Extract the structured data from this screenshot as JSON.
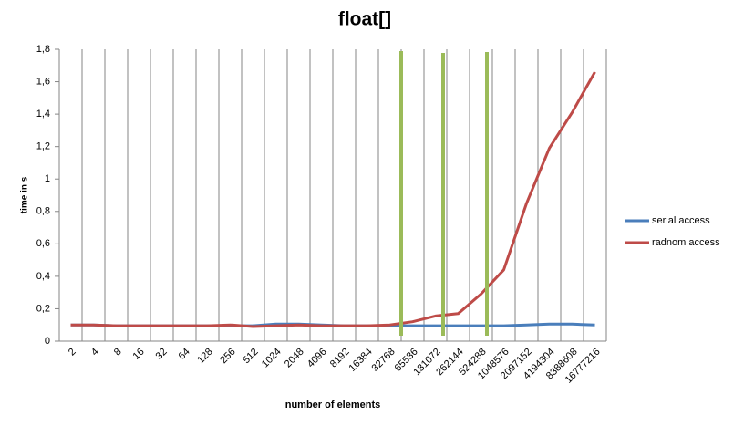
{
  "chart_data": {
    "type": "line",
    "title": "float[]",
    "x_label": "number of elements",
    "y_label": "time in s",
    "categories": [
      "2",
      "4",
      "8",
      "16",
      "32",
      "64",
      "128",
      "256",
      "512",
      "1024",
      "2048",
      "4096",
      "8192",
      "16384",
      "32768",
      "65536",
      "131072",
      "262144",
      "524288",
      "1048576",
      "2097152",
      "4194304",
      "8388608",
      "16777216"
    ],
    "series": [
      {
        "name": "serial access",
        "color": "#4a7ebb",
        "values": [
          0.1,
          0.1,
          0.095,
          0.095,
          0.095,
          0.095,
          0.095,
          0.095,
          0.095,
          0.105,
          0.105,
          0.1,
          0.095,
          0.095,
          0.095,
          0.095,
          0.095,
          0.095,
          0.095,
          0.095,
          0.1,
          0.105,
          0.105,
          0.1
        ]
      },
      {
        "name": "radnom access",
        "color": "#be4b48",
        "values": [
          0.1,
          0.1,
          0.095,
          0.095,
          0.095,
          0.095,
          0.095,
          0.1,
          0.09,
          0.095,
          0.1,
          0.095,
          0.095,
          0.095,
          0.1,
          0.12,
          0.155,
          0.17,
          0.29,
          0.44,
          0.85,
          1.19,
          1.41,
          1.66
        ]
      }
    ],
    "ylim": [
      0,
      1.8
    ],
    "yticks": [
      0,
      {
        "value": 0.2,
        "label": "0,2"
      },
      {
        "value": 0.4,
        "label": "0,4"
      },
      {
        "value": 0.6,
        "label": "0,6"
      },
      {
        "value": 0.8,
        "label": "0,8"
      },
      1,
      {
        "value": 1.2,
        "label": "1,2"
      },
      {
        "value": 1.4,
        "label": "1,4"
      },
      {
        "value": 1.6,
        "label": "1,6"
      },
      {
        "value": 1.8,
        "label": "1,8"
      }
    ],
    "grid": true,
    "legend": "right"
  }
}
